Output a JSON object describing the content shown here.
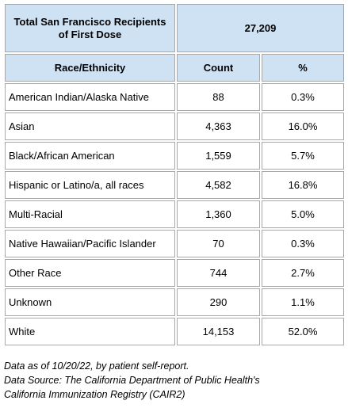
{
  "header": {
    "total_label": "Total San Francisco Recipients of First Dose",
    "total_value": "27,209"
  },
  "columns": {
    "race": "Race/Ethnicity",
    "count": "Count",
    "percent": "%"
  },
  "rows": [
    {
      "label": "American Indian/Alaska Native",
      "count": "88",
      "percent": "0.3%"
    },
    {
      "label": "Asian",
      "count": "4,363",
      "percent": "16.0%"
    },
    {
      "label": "Black/African American",
      "count": "1,559",
      "percent": "5.7%"
    },
    {
      "label": "Hispanic or Latino/a, all races",
      "count": "4,582",
      "percent": "16.8%"
    },
    {
      "label": "Multi-Racial",
      "count": "1,360",
      "percent": "5.0%"
    },
    {
      "label": "Native Hawaiian/Pacific Islander",
      "count": "70",
      "percent": "0.3%"
    },
    {
      "label": "Other Race",
      "count": "744",
      "percent": "2.7%"
    },
    {
      "label": "Unknown",
      "count": "290",
      "percent": "1.1%"
    },
    {
      "label": "White",
      "count": "14,153",
      "percent": "52.0%"
    }
  ],
  "notes": {
    "line1": "Data as of 10/20/22, by patient self-report.",
    "line2": "Data Source: The California Department of Public Health's",
    "line3": "California Immunization Registry (CAIR2)"
  },
  "colors": {
    "header_fill": "#cfe2f3",
    "border": "#a8a8a8"
  }
}
